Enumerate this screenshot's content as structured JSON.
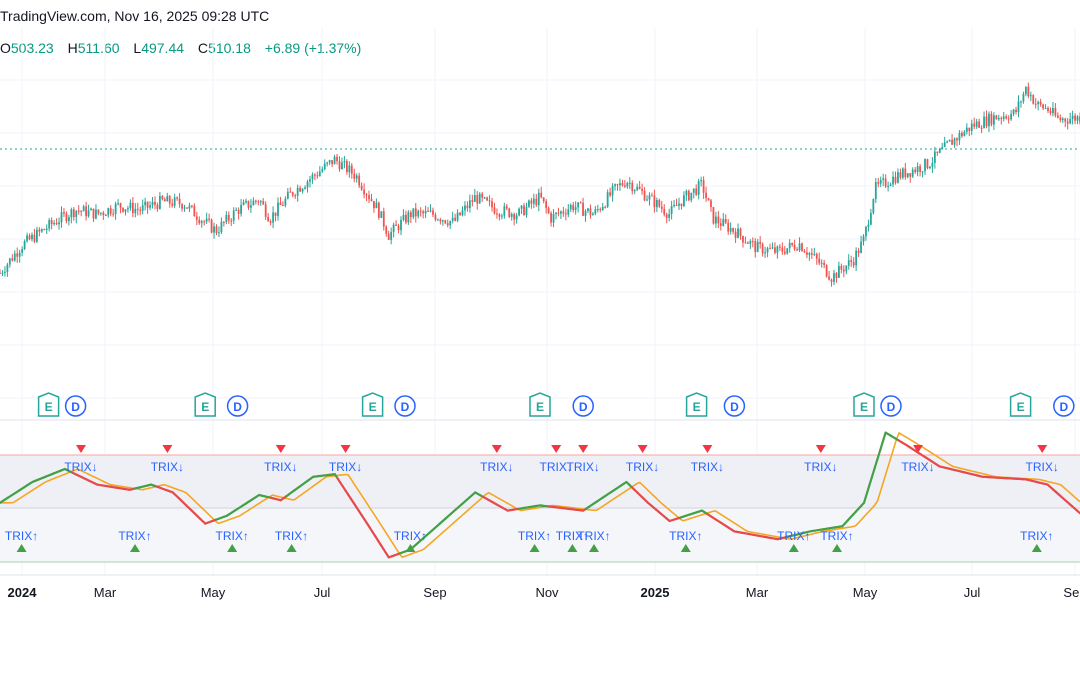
{
  "header": {
    "source": "TradingView.com",
    "timestamp": "Nov 16, 2025 09:28 UTC"
  },
  "ohlc": {
    "open_label": "O",
    "open": "503.23",
    "high_label": "H",
    "high": "511.60",
    "low_label": "L",
    "low": "497.44",
    "close_label": "C",
    "close": "510.18",
    "change": "+6.89 (+1.37%)"
  },
  "colors": {
    "up": "#26a69a",
    "down": "#ef5350",
    "signal_up": "#43a047",
    "signal_down": "#f23645",
    "trix": "#e64a4a",
    "trix_up": "#43a047",
    "signal_line": "#f5a623",
    "label": "#2962ff",
    "earnings": "#26a69a",
    "dividend": "#2962ff",
    "price_line": "#26a69a"
  },
  "chart_data": {
    "type": "candlestick",
    "x_ticks": [
      "2024",
      "Mar",
      "May",
      "Jul",
      "Sep",
      "Nov",
      "2025",
      "Mar",
      "May",
      "Jul",
      "Sep"
    ],
    "x_tick_bold": [
      true,
      false,
      false,
      false,
      false,
      false,
      true,
      false,
      false,
      false,
      false
    ],
    "last_price": 510.18,
    "price_series": [
      {
        "t": 0,
        "p": 0.32
      },
      {
        "t": 2,
        "p": 0.45
      },
      {
        "t": 5,
        "p": 0.56
      },
      {
        "t": 7,
        "p": 0.62
      },
      {
        "t": 9,
        "p": 0.6
      },
      {
        "t": 11,
        "p": 0.64
      },
      {
        "t": 13,
        "p": 0.62
      },
      {
        "t": 15,
        "p": 0.66
      },
      {
        "t": 17,
        "p": 0.65
      },
      {
        "t": 19,
        "p": 0.56
      },
      {
        "t": 20,
        "p": 0.52
      },
      {
        "t": 22,
        "p": 0.62
      },
      {
        "t": 24,
        "p": 0.67
      },
      {
        "t": 25,
        "p": 0.58
      },
      {
        "t": 27,
        "p": 0.7
      },
      {
        "t": 29,
        "p": 0.78
      },
      {
        "t": 31,
        "p": 0.86
      },
      {
        "t": 33,
        "p": 0.78
      },
      {
        "t": 35,
        "p": 0.62
      },
      {
        "t": 36,
        "p": 0.5
      },
      {
        "t": 38,
        "p": 0.6
      },
      {
        "t": 40,
        "p": 0.6
      },
      {
        "t": 42,
        "p": 0.56
      },
      {
        "t": 44,
        "p": 0.68
      },
      {
        "t": 46,
        "p": 0.62
      },
      {
        "t": 48,
        "p": 0.6
      },
      {
        "t": 50,
        "p": 0.68
      },
      {
        "t": 51,
        "p": 0.58
      },
      {
        "t": 53,
        "p": 0.64
      },
      {
        "t": 55,
        "p": 0.6
      },
      {
        "t": 57,
        "p": 0.72
      },
      {
        "t": 58,
        "p": 0.76
      },
      {
        "t": 60,
        "p": 0.68
      },
      {
        "t": 62,
        "p": 0.6
      },
      {
        "t": 63,
        "p": 0.66
      },
      {
        "t": 65,
        "p": 0.74
      },
      {
        "t": 66,
        "p": 0.58
      },
      {
        "t": 68,
        "p": 0.52
      },
      {
        "t": 70,
        "p": 0.44
      },
      {
        "t": 72,
        "p": 0.42
      },
      {
        "t": 74,
        "p": 0.46
      },
      {
        "t": 76,
        "p": 0.36
      },
      {
        "t": 77,
        "p": 0.3
      },
      {
        "t": 79,
        "p": 0.38
      },
      {
        "t": 80,
        "p": 0.48
      },
      {
        "t": 81,
        "p": 0.72
      },
      {
        "t": 83,
        "p": 0.78
      },
      {
        "t": 86,
        "p": 0.84
      },
      {
        "t": 88,
        "p": 0.94
      },
      {
        "t": 90,
        "p": 1.02
      },
      {
        "t": 92,
        "p": 1.06
      },
      {
        "t": 94,
        "p": 1.08
      },
      {
        "t": 95,
        "p": 1.2
      },
      {
        "t": 96,
        "p": 1.12
      },
      {
        "t": 97,
        "p": 1.1
      },
      {
        "t": 98,
        "p": 1.05
      },
      {
        "t": 100,
        "p": 1.06
      }
    ],
    "trix_series": [
      {
        "t": 0,
        "v": 0.1
      },
      {
        "t": 3,
        "v": 0.5
      },
      {
        "t": 6,
        "v": 0.75
      },
      {
        "t": 9,
        "v": 0.45
      },
      {
        "t": 12,
        "v": 0.35
      },
      {
        "t": 14,
        "v": 0.45
      },
      {
        "t": 16,
        "v": 0.3
      },
      {
        "t": 19,
        "v": -0.3
      },
      {
        "t": 21,
        "v": -0.15
      },
      {
        "t": 24,
        "v": 0.25
      },
      {
        "t": 26,
        "v": 0.15
      },
      {
        "t": 29,
        "v": 0.6
      },
      {
        "t": 31,
        "v": 0.65
      },
      {
        "t": 34,
        "v": -0.3
      },
      {
        "t": 36,
        "v": -0.95
      },
      {
        "t": 38,
        "v": -0.8
      },
      {
        "t": 41,
        "v": -0.25
      },
      {
        "t": 44,
        "v": 0.3
      },
      {
        "t": 47,
        "v": -0.05
      },
      {
        "t": 50,
        "v": 0.05
      },
      {
        "t": 54,
        "v": -0.05
      },
      {
        "t": 58,
        "v": 0.5
      },
      {
        "t": 60,
        "v": 0.1
      },
      {
        "t": 62,
        "v": -0.25
      },
      {
        "t": 65,
        "v": -0.05
      },
      {
        "t": 68,
        "v": -0.45
      },
      {
        "t": 72,
        "v": -0.6
      },
      {
        "t": 75,
        "v": -0.45
      },
      {
        "t": 78,
        "v": -0.35
      },
      {
        "t": 80,
        "v": 0.1
      },
      {
        "t": 82,
        "v": 1.45
      },
      {
        "t": 84,
        "v": 1.2
      },
      {
        "t": 87,
        "v": 0.8
      },
      {
        "t": 91,
        "v": 0.6
      },
      {
        "t": 95,
        "v": 0.55
      },
      {
        "t": 97,
        "v": 0.45
      },
      {
        "t": 100,
        "v": -0.1
      }
    ],
    "earnings_markers": [
      {
        "t": 4.5
      },
      {
        "t": 19
      },
      {
        "t": 34.5
      },
      {
        "t": 50
      },
      {
        "t": 64.5
      },
      {
        "t": 80
      },
      {
        "t": 94.5
      }
    ],
    "dividend_markers": [
      {
        "t": 7
      },
      {
        "t": 22
      },
      {
        "t": 37.5
      },
      {
        "t": 54
      },
      {
        "t": 68
      },
      {
        "t": 82.5
      },
      {
        "t": 98.5
      }
    ],
    "sell_signals": [
      {
        "t": 7.5,
        "label": "TRIX↓"
      },
      {
        "t": 15.5,
        "label": "TRIX↓"
      },
      {
        "t": 26,
        "label": "TRIX↓"
      },
      {
        "t": 32,
        "label": "TRIX↓"
      },
      {
        "t": 46,
        "label": "TRIX↓"
      },
      {
        "t": 51.5,
        "label": "TRIX↓"
      },
      {
        "t": 54,
        "label": "TRIX↓"
      },
      {
        "t": 59.5,
        "label": "TRIX↓"
      },
      {
        "t": 65.5,
        "label": "TRIX↓"
      },
      {
        "t": 76,
        "label": "TRIX↓"
      },
      {
        "t": 85,
        "label": "TRIX↓"
      },
      {
        "t": 96.5,
        "label": "TRIX↓"
      }
    ],
    "buy_signals": [
      {
        "t": 2,
        "label": "TRIX↑"
      },
      {
        "t": 12.5,
        "label": "TRIX↑"
      },
      {
        "t": 21.5,
        "label": "TRIX↑"
      },
      {
        "t": 27,
        "label": "TRIX↑"
      },
      {
        "t": 38,
        "label": "TRIX↑"
      },
      {
        "t": 49.5,
        "label": "TRIX↑"
      },
      {
        "t": 53,
        "label": "TRIX↑"
      },
      {
        "t": 55,
        "label": "TRIX↑"
      },
      {
        "t": 63.5,
        "label": "TRIX↑"
      },
      {
        "t": 73.5,
        "label": "TRIX↑"
      },
      {
        "t": 77.5,
        "label": "TRIX↑"
      },
      {
        "t": 96,
        "label": "TRIX↑"
      }
    ]
  }
}
